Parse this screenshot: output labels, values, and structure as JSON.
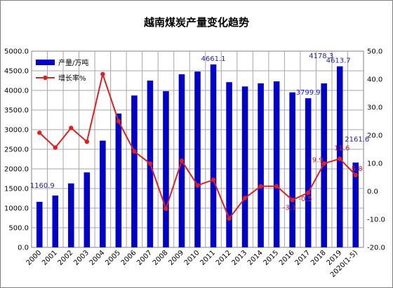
{
  "chart_data": {
    "type": "bar",
    "title": "越南煤炭产量变化趋势",
    "categories": [
      "2000",
      "2001",
      "2002",
      "2003",
      "2004",
      "2005",
      "2006",
      "2007",
      "2008",
      "2009",
      "2010",
      "2011",
      "2012",
      "2013",
      "2014",
      "2015",
      "2016",
      "2017",
      "2018",
      "2019",
      "2020(1-5)"
    ],
    "series": [
      {
        "name": "产量/万吨",
        "type": "bar",
        "axis": "left",
        "color": "#0000cc",
        "values": [
          1160.9,
          1320,
          1630,
          1910,
          2720,
          3410,
          3870,
          4250,
          3980,
          4410,
          4480,
          4661.1,
          4210,
          4100,
          4180,
          4230,
          3950,
          3799.9,
          4178.3,
          4613.7,
          2161.6
        ]
      },
      {
        "name": "增长率%",
        "type": "line",
        "axis": "right",
        "color": "#e02020",
        "values": [
          20.9,
          15.6,
          22.6,
          17.7,
          41.8,
          25.0,
          14.2,
          9.9,
          -6.2,
          10.9,
          2.1,
          4.1,
          -9.7,
          -2.4,
          1.8,
          1.8,
          -3.1,
          -0.5,
          9.9,
          11.6,
          5.8
        ]
      }
    ],
    "y_left": {
      "min": 0,
      "max": 5000,
      "step": 500,
      "ticks": [
        "0.0",
        "500.0",
        "1000.0",
        "1500.0",
        "2000.0",
        "2500.0",
        "3000.0",
        "3500.0",
        "4000.0",
        "4500.0",
        "5000.0"
      ]
    },
    "y_right": {
      "min": -20,
      "max": 50,
      "step": 10,
      "ticks": [
        "-20.0",
        "-10.0",
        "0.0",
        "10.0",
        "20.0",
        "30.0",
        "40.0",
        "50.0"
      ]
    },
    "grid": true,
    "legend_position": "top-left",
    "bar_labels": [
      {
        "index": 0,
        "text": "1160.9"
      },
      {
        "index": 11,
        "text": "4661.1"
      },
      {
        "index": 17,
        "text": "3799.9"
      },
      {
        "index": 18,
        "text": "4178.3"
      },
      {
        "index": 19,
        "text": "4613.7"
      },
      {
        "index": 20,
        "text": "2161.6"
      }
    ],
    "line_labels": [
      {
        "index": 16,
        "text": "-3.1"
      },
      {
        "index": 17,
        "text": "-0.5"
      },
      {
        "index": 18,
        "text": "9.9"
      },
      {
        "index": 19,
        "text": "11.6"
      },
      {
        "index": 20,
        "text": "5.8"
      }
    ]
  }
}
